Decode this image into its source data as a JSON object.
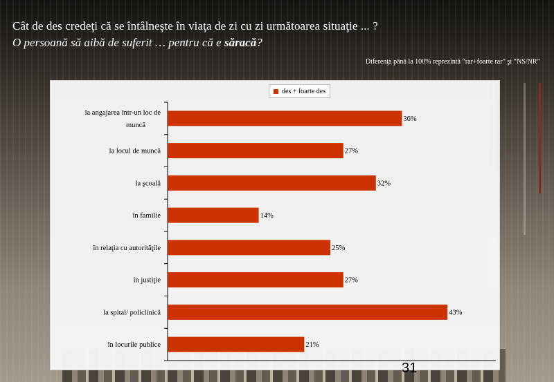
{
  "slide": {
    "title_line1": "Cât de des credeţi că se întâlneşte în viaţa de zi cu zi următoarea situaţie ... ?",
    "title_line2_pre": "O persoană să aibă de suferit … pentru că e ",
    "title_line2_bold": "săracă",
    "title_line2_post": "?",
    "note": "Diferenţa până la 100% reprezintă  “rar+foarte rar” şi “NS/NR”",
    "page_number": "31"
  },
  "chart_data": {
    "type": "bar",
    "orientation": "horizontal",
    "legend_position": "top",
    "categories": [
      [
        "la angajarea într-un loc de",
        "muncă"
      ],
      [
        "la locul de muncă"
      ],
      [
        "la şcoală"
      ],
      [
        "în familie"
      ],
      [
        "în relaţia cu autorităţile"
      ],
      [
        "în justiţie"
      ],
      [
        "la spital/ policlinică"
      ],
      [
        "în locurile publice"
      ]
    ],
    "series": [
      {
        "name": "des + foarte des",
        "values": [
          36,
          27,
          32,
          14,
          25,
          27,
          43,
          21
        ]
      }
    ],
    "value_labels": [
      "36%",
      "27%",
      "32%",
      "14%",
      "25%",
      "27%",
      "43%",
      "21%"
    ],
    "xlim": [
      0,
      50
    ],
    "color": "#cc3300"
  }
}
